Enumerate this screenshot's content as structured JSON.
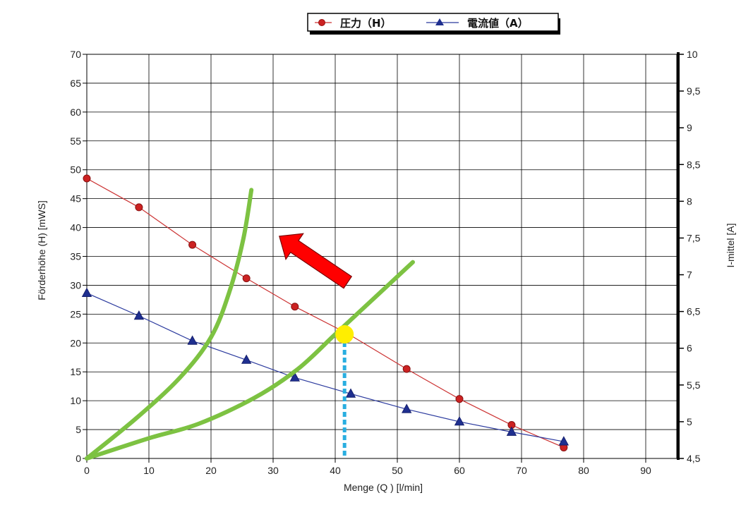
{
  "chart_data": {
    "type": "line",
    "x": {
      "label": "Menge (Q ) [l/min]",
      "range": [
        0,
        95
      ],
      "ticks": [
        0,
        10,
        20,
        30,
        40,
        50,
        60,
        70,
        80,
        90
      ]
    },
    "y_left": {
      "label": "Förderhöhe (H)     [mWS]",
      "range": [
        0,
        70
      ],
      "ticks": [
        0,
        5,
        10,
        15,
        20,
        25,
        30,
        35,
        40,
        45,
        50,
        55,
        60,
        65,
        70
      ]
    },
    "y_right": {
      "label": "I-mittel     [A]",
      "range": [
        4.5,
        10
      ],
      "ticks": [
        "4,5",
        "5",
        "5,5",
        "6",
        "6,5",
        "7",
        "7,5",
        "8",
        "8,5",
        "9",
        "9,5",
        "10"
      ],
      "tick_values": [
        4.5,
        5,
        5.5,
        6,
        6.5,
        7,
        7.5,
        8,
        8.5,
        9,
        9.5,
        10
      ]
    },
    "grid": true,
    "legend_position": "top-right",
    "series": [
      {
        "name": "圧力（H）",
        "axis": "left",
        "color": "#cc3333",
        "marker": "circle",
        "x": [
          0,
          8.4,
          17,
          25.7,
          33.5,
          42.2,
          51.5,
          60,
          68.4,
          76.8
        ],
        "y": [
          48.5,
          43.5,
          37,
          31.2,
          26.3,
          21.5,
          15.5,
          10.3,
          5.8,
          1.9
        ]
      },
      {
        "name": "電流値（A）",
        "axis": "right",
        "color": "#2b3a9e",
        "marker": "triangle",
        "x": [
          0,
          8.4,
          17,
          25.7,
          33.5,
          42.5,
          51.5,
          60,
          68.4,
          76.8
        ],
        "y": [
          6.75,
          6.44,
          6.1,
          5.84,
          5.6,
          5.38,
          5.17,
          5.0,
          4.86,
          4.73
        ]
      }
    ],
    "annotations": {
      "system_curves": {
        "color": "#7dc242",
        "curves": [
          [
            [
              0,
              0
            ],
            [
              8,
              7
            ],
            [
              15,
              14
            ],
            [
              20,
              21
            ],
            [
              23,
              29
            ],
            [
              25.2,
              38
            ],
            [
              26.5,
              46.5
            ]
          ],
          [
            [
              0,
              0
            ],
            [
              10,
              3.5
            ],
            [
              18,
              6
            ],
            [
              27,
              10.5
            ],
            [
              34,
              15.5
            ],
            [
              40,
              21.5
            ],
            [
              46,
              27.5
            ],
            [
              52.5,
              34
            ]
          ]
        ]
      },
      "operating_point": {
        "x": 41.5,
        "y": 21.5,
        "color": "#ffee00"
      },
      "drop_line": {
        "x": 41.5,
        "from_y": 21.5,
        "to_y": 0,
        "color": "#29aee0"
      },
      "arrow": {
        "from": {
          "x": 42,
          "y": 30.5
        },
        "to": {
          "x": 31,
          "y": 38.5
        },
        "color": "#ff0000"
      }
    }
  }
}
